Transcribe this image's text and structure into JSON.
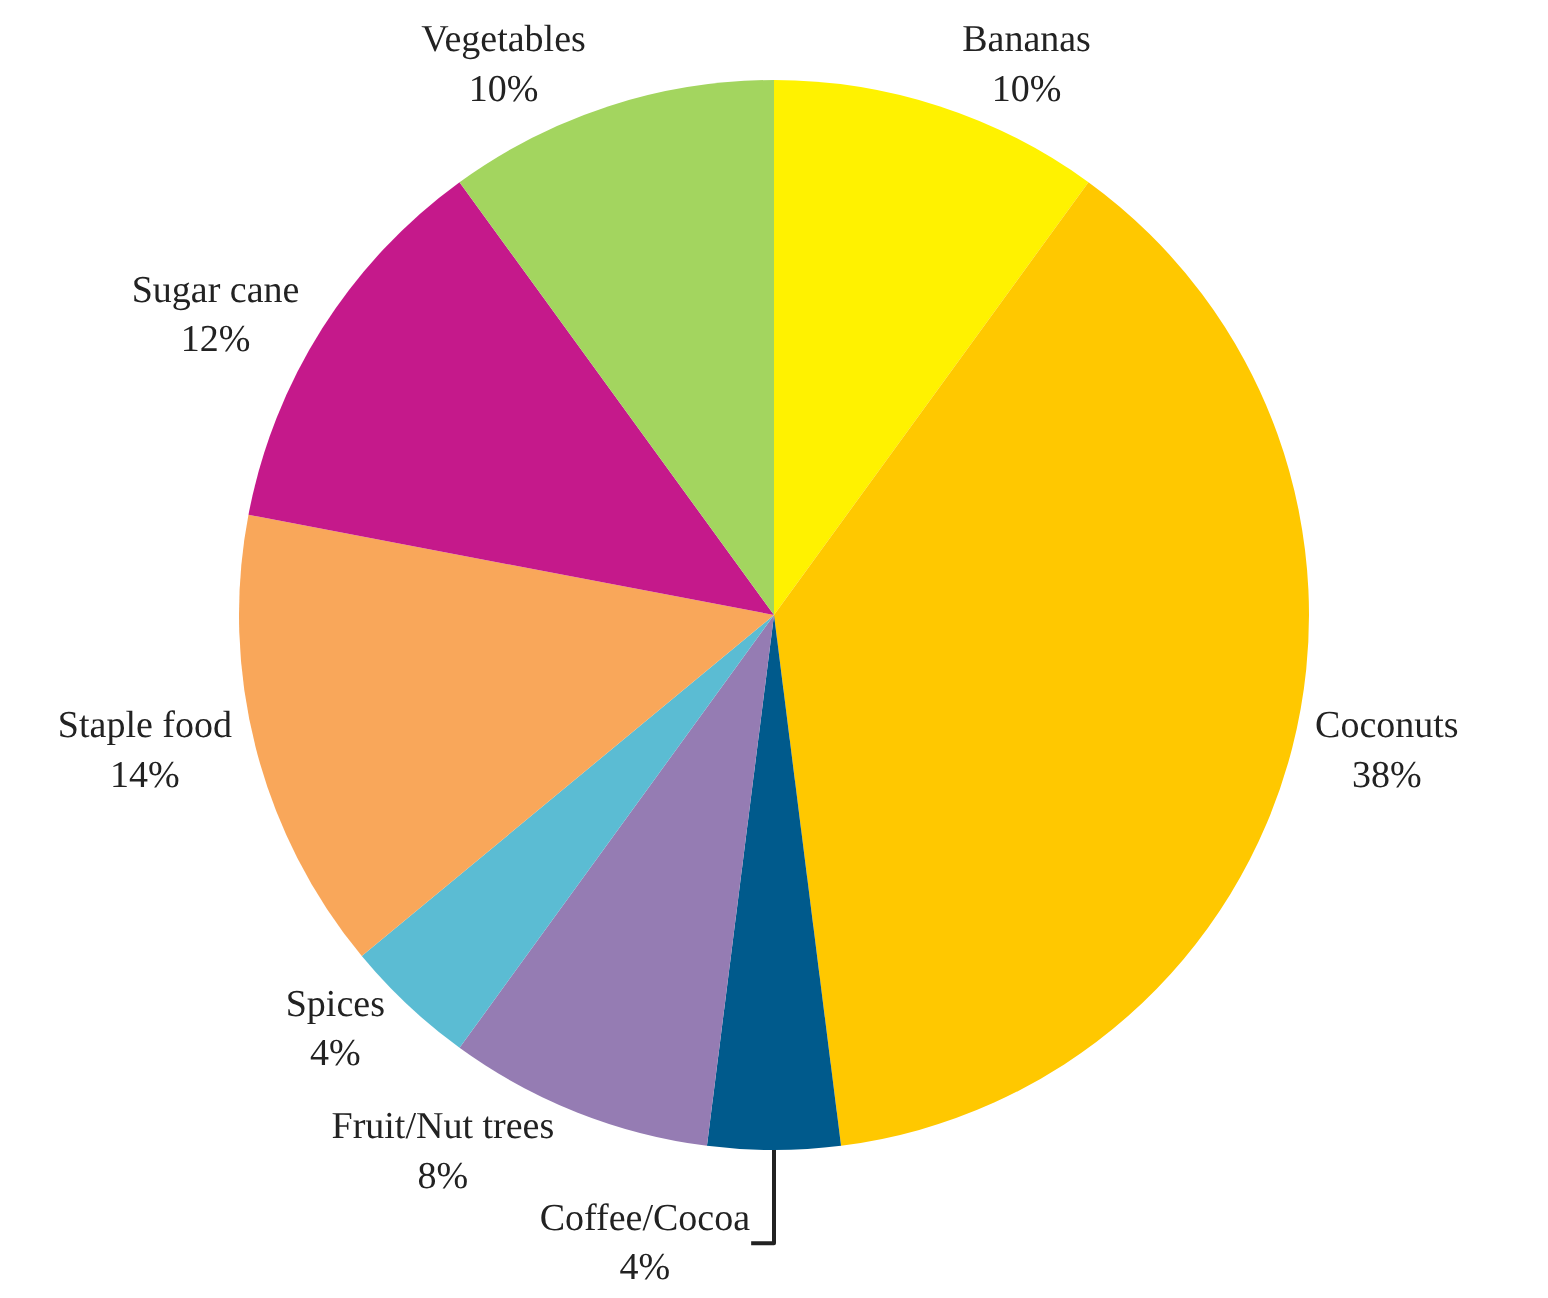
{
  "chart_data": {
    "type": "pie",
    "categories": [
      "Bananas",
      "Coconuts",
      "Coffee/Cocoa",
      "Fruit/Nut trees",
      "Spices",
      "Staple food",
      "Sugar cane",
      "Vegetables"
    ],
    "values": [
      10,
      38,
      4,
      8,
      4,
      14,
      12,
      10
    ],
    "colors": [
      "#fff200",
      "#ffc800",
      "#005a8c",
      "#957cb3",
      "#5bbcd3",
      "#f9a75a",
      "#c5198b",
      "#a3d55f"
    ],
    "value_labels": [
      "10%",
      "38%",
      "4%",
      "8%",
      "4%",
      "14%",
      "12%",
      "10%"
    ],
    "legend": false
  }
}
